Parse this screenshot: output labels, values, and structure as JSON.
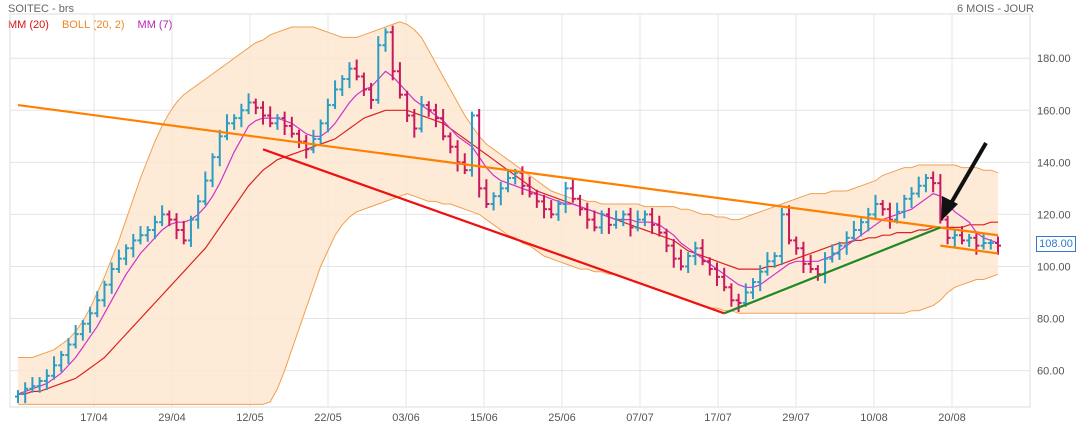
{
  "header": {
    "title": "SOITEC - brs",
    "period": "6 MOIS - JOUR"
  },
  "legend": {
    "mm20": "MM (20)",
    "boll": "BOLL (20, 2)",
    "mm7": "MM (7)"
  },
  "colors": {
    "up": "#2b9cc3",
    "down": "#c8185f",
    "mm20": "#dd2222",
    "mm7": "#cc33cc",
    "boll_fill": "#fde8d0",
    "boll_line": "#f0a050",
    "trend_orange": "#ff7f00",
    "trend_red": "#ee1111",
    "trend_green": "#228822",
    "arrow": "#111111",
    "last_price": "#3377cc"
  },
  "chart_data": {
    "type": "ohlc",
    "title": "SOITEC - brs",
    "ylim": [
      46,
      197
    ],
    "y_ticks": [
      60,
      80,
      100,
      120,
      140,
      160,
      180
    ],
    "y_tick_labels": [
      "60.00",
      "80.00",
      "100.00",
      "120.00",
      "140.00",
      "160.00",
      "180.00"
    ],
    "x_ticks": [
      "17/04",
      "29/04",
      "12/05",
      "22/05",
      "03/06",
      "15/06",
      "25/06",
      "07/07",
      "17/07",
      "29/07",
      "10/08",
      "20/08"
    ],
    "last_price_label": "108.00",
    "last_price": 108,
    "close": [
      51,
      53,
      54,
      56,
      58,
      62,
      66,
      70,
      74,
      78,
      82,
      87,
      93,
      99,
      103,
      107,
      110,
      112,
      114,
      117,
      120,
      118,
      114,
      110,
      118,
      125,
      133,
      142,
      150,
      155,
      157,
      160,
      163,
      161,
      158,
      155,
      157,
      154,
      151,
      148,
      145,
      149,
      155,
      162,
      168,
      172,
      176,
      173,
      168,
      164,
      185,
      190,
      175,
      166,
      158,
      153,
      162,
      160,
      157,
      150,
      146,
      140,
      137,
      158,
      130,
      124,
      127,
      130,
      134,
      136,
      131,
      128,
      125,
      122,
      120,
      124,
      130,
      126,
      122,
      118,
      115,
      120,
      116,
      118,
      120,
      115,
      118,
      120,
      116,
      113,
      108,
      103,
      100,
      104,
      107,
      102,
      99,
      96,
      92,
      87,
      86,
      90,
      94,
      98,
      102,
      104,
      120,
      110,
      107,
      101,
      99,
      97,
      103,
      105,
      108,
      111,
      114,
      117,
      120,
      124,
      122,
      118,
      121,
      126,
      128,
      131,
      134,
      132,
      118,
      111,
      112,
      110,
      111,
      108,
      109,
      109,
      108
    ],
    "mm7": [
      51,
      52,
      53,
      54,
      55,
      57,
      59,
      62,
      65,
      69,
      73,
      77,
      82,
      87,
      92,
      97,
      101,
      105,
      108,
      111,
      114,
      116,
      117,
      117,
      118,
      120,
      123,
      127,
      132,
      138,
      144,
      149,
      154,
      156,
      157,
      157,
      157,
      156,
      155,
      153,
      151,
      150,
      150,
      152,
      155,
      159,
      163,
      166,
      168,
      169,
      172,
      175,
      173,
      170,
      167,
      164,
      162,
      160,
      158,
      156,
      153,
      150,
      148,
      146,
      142,
      138,
      135,
      133,
      132,
      131,
      130,
      129,
      128,
      127,
      126,
      125,
      124,
      124,
      123,
      122,
      121,
      120,
      119,
      118,
      118,
      118,
      117,
      117,
      117,
      116,
      114,
      112,
      109,
      107,
      105,
      103,
      101,
      99,
      97,
      95,
      93,
      92,
      92,
      93,
      95,
      97,
      99,
      101,
      102,
      102,
      102,
      102,
      103,
      104,
      106,
      108,
      110,
      112,
      114,
      116,
      118,
      119,
      120,
      121,
      122,
      124,
      126,
      128,
      127,
      124,
      121,
      119,
      117,
      113,
      111,
      110,
      109
    ],
    "mm20": [
      51,
      51,
      52,
      52,
      53,
      54,
      55,
      56,
      57,
      59,
      61,
      63,
      65,
      68,
      71,
      74,
      77,
      80,
      83,
      86,
      89,
      92,
      95,
      98,
      101,
      104,
      107,
      111,
      115,
      119,
      123,
      127,
      131,
      134,
      137,
      139,
      141,
      142,
      143,
      144,
      145,
      146,
      147,
      148,
      149,
      151,
      153,
      155,
      157,
      158,
      159,
      160,
      160,
      160,
      160,
      159,
      158,
      157,
      156,
      155,
      153,
      151,
      149,
      147,
      145,
      143,
      141,
      139,
      137,
      135,
      133,
      131,
      129,
      128,
      127,
      126,
      125,
      124,
      123,
      122,
      121,
      120,
      119,
      118,
      117,
      116,
      115,
      114,
      113,
      112,
      111,
      110,
      108,
      106,
      105,
      104,
      103,
      102,
      101,
      100,
      99,
      99,
      99,
      99,
      100,
      100,
      101,
      102,
      103,
      104,
      105,
      106,
      107,
      108,
      109,
      109,
      110,
      110,
      111,
      111,
      112,
      112,
      113,
      113,
      113,
      114,
      114,
      115,
      115,
      115,
      115,
      115,
      116,
      116,
      116,
      117,
      117
    ],
    "boll_upper": [
      65,
      65,
      65,
      66,
      67,
      68,
      70,
      72,
      75,
      79,
      84,
      90,
      96,
      103,
      110,
      118,
      126,
      134,
      141,
      148,
      154,
      159,
      163,
      166,
      168,
      170,
      172,
      174,
      176,
      178,
      180,
      182,
      184,
      186,
      187,
      189,
      190,
      191,
      192,
      192,
      192,
      192,
      191,
      190,
      189,
      188,
      188,
      188,
      189,
      190,
      191,
      192,
      193,
      194,
      193,
      191,
      188,
      183,
      178,
      173,
      168,
      163,
      158,
      154,
      150,
      147,
      145,
      143,
      141,
      139,
      137,
      135,
      133,
      131,
      129,
      128,
      127,
      126,
      126,
      125,
      125,
      124,
      124,
      124,
      124,
      124,
      124,
      123,
      123,
      123,
      123,
      123,
      122,
      122,
      121,
      120,
      120,
      119,
      119,
      118,
      118,
      119,
      120,
      121,
      122,
      123,
      124,
      125,
      126,
      127,
      128,
      128,
      128,
      129,
      129,
      129,
      130,
      131,
      132,
      133,
      135,
      136,
      137,
      138,
      138,
      139,
      139,
      139,
      139,
      139,
      139,
      138,
      138,
      138,
      137,
      137,
      136
    ],
    "boll_lower": [
      47,
      47,
      47,
      47,
      47,
      47,
      47,
      47,
      47,
      47,
      47,
      47,
      47,
      47,
      47,
      47,
      47,
      47,
      47,
      47,
      47,
      47,
      47,
      47,
      47,
      47,
      47,
      47,
      47,
      47,
      47,
      47,
      47,
      47,
      47,
      48,
      53,
      60,
      68,
      76,
      84,
      92,
      100,
      106,
      112,
      116,
      119,
      121,
      122,
      123,
      124,
      125,
      126,
      127,
      128,
      127,
      126,
      125,
      125,
      124,
      124,
      123,
      122,
      121,
      120,
      118,
      116,
      114,
      112,
      111,
      109,
      108,
      106,
      104,
      103,
      102,
      101,
      100,
      99,
      99,
      98,
      98,
      97,
      97,
      96,
      95,
      94,
      93,
      92,
      91,
      90,
      89,
      88,
      87,
      86,
      85,
      84,
      84,
      83,
      83,
      82,
      82,
      82,
      82,
      82,
      82,
      82,
      82,
      82,
      82,
      82,
      82,
      82,
      82,
      82,
      82,
      82,
      82,
      82,
      82,
      82,
      82,
      82,
      82,
      83,
      83,
      84,
      85,
      87,
      90,
      92,
      93,
      94,
      95,
      95,
      96,
      97
    ],
    "trendlines": [
      {
        "name": "resistance",
        "color": "#ff7f00",
        "from": [
          0,
          162
        ],
        "to": [
          136,
          112
        ]
      },
      {
        "name": "support",
        "color": "#ee1111",
        "from": [
          34,
          145
        ],
        "to": [
          98,
          82
        ]
      },
      {
        "name": "rising",
        "color": "#228822",
        "from": [
          98,
          82
        ],
        "to": [
          128,
          115
        ]
      },
      {
        "name": "channel",
        "color": "#ff7f00",
        "from": [
          128,
          108
        ],
        "to": [
          136,
          105
        ]
      }
    ]
  }
}
